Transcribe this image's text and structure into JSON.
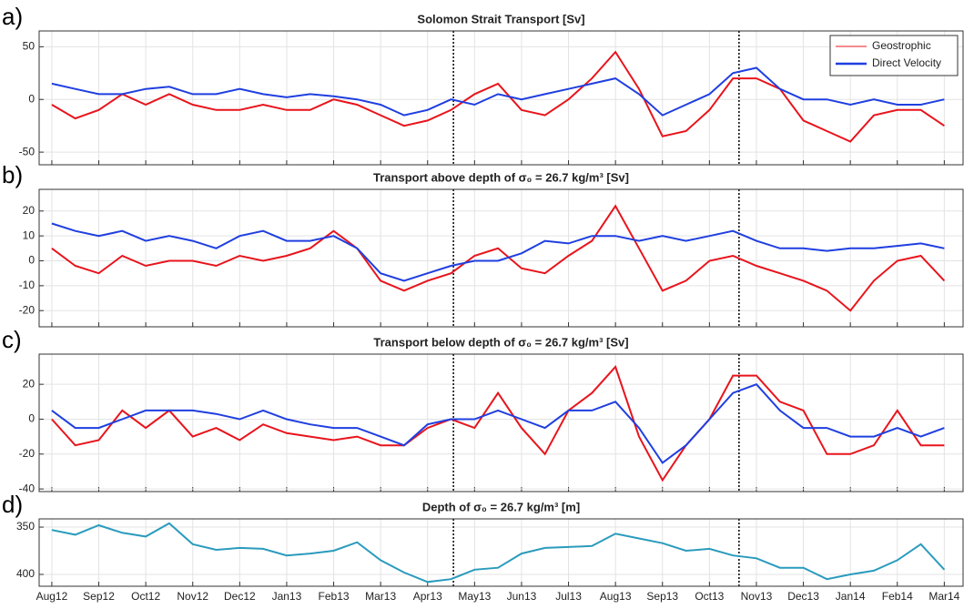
{
  "chart_data": [
    {
      "type": "line",
      "panel_label": "a)",
      "title": "Solomon Strait Transport [Sv]",
      "x": [
        0,
        0.5,
        1,
        1.5,
        2,
        2.5,
        3,
        3.5,
        4,
        4.5,
        5,
        5.5,
        6,
        6.5,
        7,
        7.5,
        8,
        8.5,
        9,
        9.5,
        10,
        10.5,
        11,
        11.5,
        12,
        12.5,
        13,
        13.5,
        14,
        14.5,
        15,
        15.5,
        16,
        16.5,
        17,
        17.5,
        18,
        18.5,
        19
      ],
      "xlim": [
        -0.27,
        19.4
      ],
      "xticks": [
        0,
        1,
        2,
        3,
        4,
        5,
        6,
        7,
        8,
        9,
        10,
        11,
        12,
        13,
        14,
        15,
        16,
        17,
        18,
        19
      ],
      "ylim": [
        -62,
        65
      ],
      "yticks": [
        50,
        0,
        -50
      ],
      "grid": true,
      "vlines": [
        8.55,
        14.63
      ],
      "legend": "upper right",
      "series": [
        {
          "name": "Geostrophic",
          "color": "#e8141c",
          "values": [
            -5,
            -18,
            -10,
            5,
            -5,
            5,
            -5,
            -10,
            -10,
            -5,
            -10,
            -10,
            0,
            -5,
            -15,
            -25,
            -20,
            -10,
            5,
            15,
            -10,
            -15,
            0,
            20,
            45,
            10,
            -35,
            -30,
            -10,
            20,
            20,
            10,
            -20,
            -30,
            -40,
            -15,
            -10,
            -10,
            -25
          ]
        },
        {
          "name": "Direct Velocity",
          "color": "#1f3fe0",
          "values": [
            15,
            10,
            5,
            5,
            10,
            12,
            5,
            5,
            10,
            5,
            2,
            5,
            3,
            0,
            -5,
            -15,
            -10,
            0,
            -5,
            5,
            0,
            5,
            10,
            15,
            20,
            5,
            -15,
            -5,
            5,
            25,
            30,
            10,
            0,
            0,
            -5,
            0,
            -5,
            -5,
            0
          ]
        }
      ]
    },
    {
      "type": "line",
      "panel_label": "b)",
      "title": "Transport above depth of σ₀ = 26.7 kg/m³ [Sv]",
      "x": [
        0,
        0.5,
        1,
        1.5,
        2,
        2.5,
        3,
        3.5,
        4,
        4.5,
        5,
        5.5,
        6,
        6.5,
        7,
        7.5,
        8,
        8.5,
        9,
        9.5,
        10,
        10.5,
        11,
        11.5,
        12,
        12.5,
        13,
        13.5,
        14,
        14.5,
        15,
        15.5,
        16,
        16.5,
        17,
        17.5,
        18,
        18.5,
        19
      ],
      "xlim": [
        -0.27,
        19.4
      ],
      "xticks": [
        0,
        1,
        2,
        3,
        4,
        5,
        6,
        7,
        8,
        9,
        10,
        11,
        12,
        13,
        14,
        15,
        16,
        17,
        18,
        19
      ],
      "ylim": [
        -26.5,
        28.7
      ],
      "yticks": [
        20,
        10,
        0,
        -10,
        -20
      ],
      "grid": true,
      "vlines": [
        8.55,
        14.63
      ],
      "series": [
        {
          "color": "#e8141c",
          "values": [
            5,
            -2,
            -5,
            2,
            -2,
            0,
            0,
            -2,
            2,
            0,
            2,
            5,
            12,
            5,
            -8,
            -12,
            -8,
            -5,
            2,
            5,
            -3,
            -5,
            2,
            8,
            22,
            5,
            -12,
            -8,
            0,
            2,
            -2,
            -5,
            -8,
            -12,
            -20,
            -8,
            0,
            2,
            -8
          ]
        },
        {
          "color": "#1f3fe0",
          "values": [
            15,
            12,
            10,
            12,
            8,
            10,
            8,
            5,
            10,
            12,
            8,
            8,
            10,
            5,
            -5,
            -8,
            -5,
            -2,
            0,
            0,
            3,
            8,
            7,
            10,
            10,
            8,
            10,
            8,
            10,
            12,
            8,
            5,
            5,
            4,
            5,
            5,
            6,
            7,
            5
          ]
        }
      ]
    },
    {
      "type": "line",
      "panel_label": "c)",
      "title": "Transport below depth of σ₀ = 26.7 kg/m³ [Sv]",
      "x": [
        0,
        0.5,
        1,
        1.5,
        2,
        2.5,
        3,
        3.5,
        4,
        4.5,
        5,
        5.5,
        6,
        6.5,
        7,
        7.5,
        8,
        8.5,
        9,
        9.5,
        10,
        10.5,
        11,
        11.5,
        12,
        12.5,
        13,
        13.5,
        14,
        14.5,
        15,
        15.5,
        16,
        16.5,
        17,
        17.5,
        18,
        18.5,
        19
      ],
      "xlim": [
        -0.27,
        19.4
      ],
      "xticks": [
        0,
        1,
        2,
        3,
        4,
        5,
        6,
        7,
        8,
        9,
        10,
        11,
        12,
        13,
        14,
        15,
        16,
        17,
        18,
        19
      ],
      "ylim": [
        -41.5,
        37.3
      ],
      "yticks": [
        20,
        0,
        -20,
        -40
      ],
      "grid": true,
      "vlines": [
        8.55,
        14.63
      ],
      "series": [
        {
          "color": "#e8141c",
          "values": [
            0,
            -15,
            -12,
            5,
            -5,
            5,
            -10,
            -5,
            -12,
            -3,
            -8,
            -10,
            -12,
            -10,
            -15,
            -15,
            -5,
            0,
            -5,
            15,
            -5,
            -20,
            5,
            15,
            30,
            -10,
            -35,
            -15,
            0,
            25,
            25,
            10,
            5,
            -20,
            -20,
            -15,
            5,
            -15,
            -15
          ]
        },
        {
          "color": "#1f3fe0",
          "values": [
            5,
            -5,
            -5,
            0,
            5,
            5,
            5,
            3,
            0,
            5,
            0,
            -3,
            -5,
            -5,
            -10,
            -15,
            -3,
            0,
            0,
            5,
            0,
            -5,
            5,
            5,
            10,
            -5,
            -25,
            -15,
            0,
            15,
            20,
            5,
            -5,
            -5,
            -10,
            -10,
            -5,
            -10,
            -5
          ]
        }
      ]
    },
    {
      "type": "line",
      "panel_label": "d)",
      "title": "Depth of σ₀ = 26.7 kg/m³ [m]",
      "x": [
        0,
        0.5,
        1,
        1.5,
        2,
        2.5,
        3,
        3.5,
        4,
        4.5,
        5,
        5.5,
        6,
        6.5,
        7,
        7.5,
        8,
        8.5,
        9,
        9.5,
        10,
        10.5,
        11,
        11.5,
        12,
        12.5,
        13,
        13.5,
        14,
        14.5,
        15,
        15.5,
        16,
        16.5,
        17,
        17.5,
        18,
        18.5,
        19
      ],
      "xlim": [
        -0.27,
        19.4
      ],
      "xticks": [
        {
          "value": 0,
          "label": "Aug12"
        },
        {
          "value": 1,
          "label": "Sep12"
        },
        {
          "value": 2,
          "label": "Oct12"
        },
        {
          "value": 3,
          "label": "Nov12"
        },
        {
          "value": 4,
          "label": "Dec12"
        },
        {
          "value": 5,
          "label": "Jan13"
        },
        {
          "value": 6,
          "label": "Feb13"
        },
        {
          "value": 7,
          "label": "Mar13"
        },
        {
          "value": 8,
          "label": "Apr13"
        },
        {
          "value": 9,
          "label": "May13"
        },
        {
          "value": 10,
          "label": "Jun13"
        },
        {
          "value": 11,
          "label": "Jul13"
        },
        {
          "value": 12,
          "label": "Aug13"
        },
        {
          "value": 13,
          "label": "Sep13"
        },
        {
          "value": 14,
          "label": "Oct13"
        },
        {
          "value": 15,
          "label": "Nov13"
        },
        {
          "value": 16,
          "label": "Dec13"
        },
        {
          "value": 17,
          "label": "Jan14"
        },
        {
          "value": 18,
          "label": "Feb14"
        },
        {
          "value": 19,
          "label": "Mar14"
        }
      ],
      "ylim": [
        341.3,
        412.5
      ],
      "y_reversed": true,
      "yticks": [
        350,
        400
      ],
      "grid": true,
      "vlines": [
        8.55,
        14.63
      ],
      "series": [
        {
          "color": "#2a9bbd",
          "values": [
            353,
            358,
            348,
            356,
            360,
            346,
            368,
            374,
            372,
            373,
            380,
            378,
            375,
            366,
            385,
            398,
            408,
            405,
            395,
            393,
            378,
            372,
            371,
            370,
            357,
            362,
            367,
            375,
            373,
            380,
            383,
            393,
            393,
            405,
            400,
            396,
            385,
            368,
            395
          ]
        }
      ]
    }
  ]
}
